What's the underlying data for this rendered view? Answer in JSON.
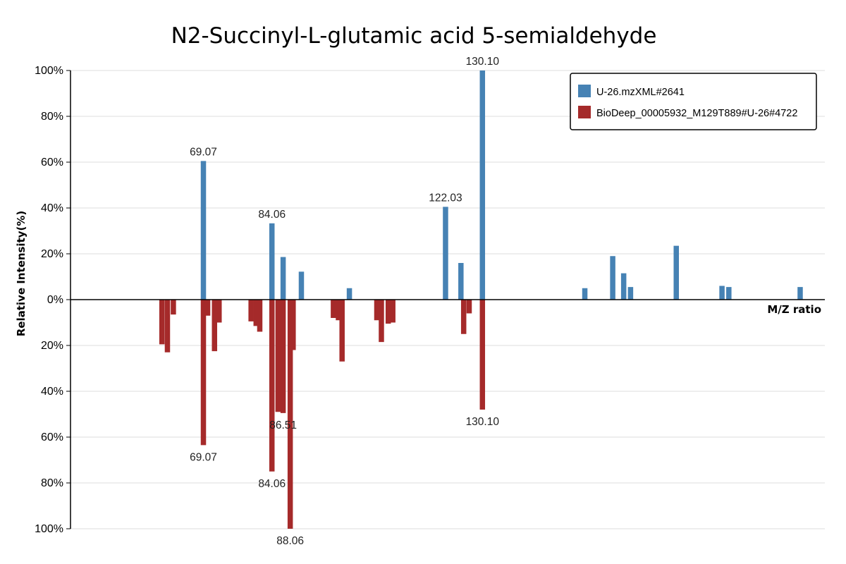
{
  "chart_data": {
    "type": "bar",
    "title": "N2-Succinyl-L-glutamic acid 5-semialdehyde",
    "xlabel": "M/Z ratio",
    "ylabel": "Relative Intensity(%)",
    "xlim": [
      40,
      205
    ],
    "ylim": [
      -100,
      100
    ],
    "yticks": [
      "100%",
      "80%",
      "60%",
      "40%",
      "20%",
      "0%",
      "20%",
      "40%",
      "60%",
      "80%",
      "100%"
    ],
    "grid": true,
    "legend_position": "top-right",
    "colors": {
      "sample": "#4682B4",
      "reference": "#A52A2A"
    },
    "legend": [
      "U-26.mzXML#2641",
      "BioDeep_00005932_M129T889#U-26#4722"
    ],
    "series": [
      {
        "name": "U-26.mzXML#2641",
        "direction": "up",
        "x": [
          69.07,
          84.06,
          86.51,
          90.5,
          101.0,
          122.03,
          125.4,
          130.1,
          152.5,
          158.6,
          161.0,
          162.5,
          172.5,
          182.5,
          184.0,
          199.6
        ],
        "values": [
          60.5,
          33.3,
          18.6,
          12.2,
          5.0,
          40.5,
          16.0,
          100.0,
          5.0,
          19.0,
          11.5,
          5.5,
          23.5,
          6.0,
          5.5,
          5.5
        ],
        "labels": [
          "69.07",
          "84.06",
          "",
          "",
          "",
          "122.03",
          "",
          "130.10",
          "",
          "",
          "",
          "",
          "",
          "",
          "",
          ""
        ]
      },
      {
        "name": "BioDeep_00005932_M129T889#U-26#4722",
        "direction": "down",
        "x": [
          60.0,
          61.2,
          62.5,
          69.07,
          70.0,
          71.5,
          72.5,
          79.5,
          80.6,
          81.4,
          84.06,
          85.4,
          86.51,
          88.06,
          88.7,
          97.5,
          98.6,
          99.4,
          107.0,
          108.0,
          109.5,
          110.5,
          126.0,
          127.2,
          130.1
        ],
        "values": [
          19.5,
          23.0,
          6.5,
          63.5,
          7.0,
          22.5,
          10.0,
          9.5,
          11.5,
          14.0,
          75.0,
          49.0,
          49.5,
          100.0,
          22.0,
          8.0,
          9.0,
          27.0,
          9.0,
          18.5,
          10.5,
          10.0,
          15.0,
          6.0,
          48.0
        ],
        "labels": [
          "",
          "",
          "",
          "69.07",
          "",
          "",
          "",
          "",
          "",
          "",
          "84.06",
          "",
          "86.51",
          "88.06",
          "",
          "",
          "",
          "",
          "",
          "",
          "",
          "",
          "",
          "",
          "130.10"
        ]
      }
    ]
  }
}
